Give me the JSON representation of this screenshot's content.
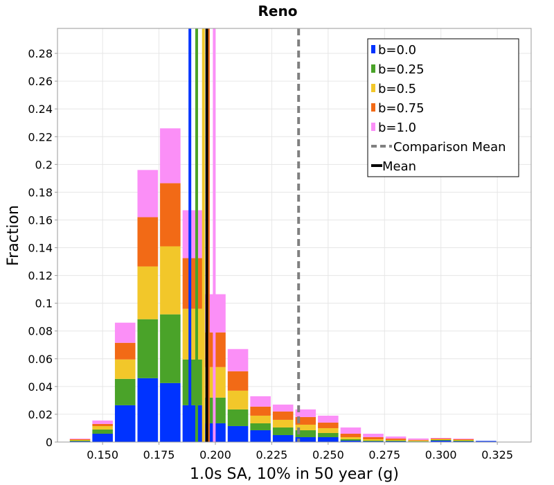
{
  "chart_data": {
    "type": "bar",
    "stacked": true,
    "title": "Reno",
    "xlabel": "1.0s SA, 10% in 50 year (g)",
    "ylabel": "Fraction",
    "xlim": [
      0.13,
      0.34
    ],
    "ylim": [
      0,
      0.298
    ],
    "x_ticks": [
      "0.150",
      "0.175",
      "0.200",
      "0.225",
      "0.250",
      "0.275",
      "0.300",
      "0.325"
    ],
    "y_ticks": [
      "0",
      "0.02",
      "0.04",
      "0.06",
      "0.08",
      "0.1",
      "0.12",
      "0.14",
      "0.16",
      "0.18",
      "0.2",
      "0.22",
      "0.24",
      "0.26",
      "0.28"
    ],
    "bin_width": 0.01,
    "x": [
      0.14,
      0.15,
      0.16,
      0.17,
      0.18,
      0.19,
      0.2,
      0.21,
      0.22,
      0.23,
      0.24,
      0.25,
      0.26,
      0.27,
      0.28,
      0.29,
      0.3,
      0.31,
      0.32
    ],
    "series": [
      {
        "name": "b=0.0",
        "color": "#0033ff",
        "values": [
          0.0005,
          0.006,
          0.0265,
          0.046,
          0.0425,
          0.0265,
          0.0135,
          0.0115,
          0.0085,
          0.005,
          0.0035,
          0.0035,
          0.001,
          0.0005,
          0.0005,
          0.0003,
          0.001,
          0.0005,
          0.0008
        ]
      },
      {
        "name": "b=0.25",
        "color": "#4aa329",
        "values": [
          0.0005,
          0.003,
          0.019,
          0.0425,
          0.0495,
          0.033,
          0.0185,
          0.012,
          0.005,
          0.0055,
          0.005,
          0.003,
          0.001,
          0.0005,
          0.0005,
          0.0003,
          0.0005,
          0.0005,
          0
        ]
      },
      {
        "name": "b=0.5",
        "color": "#f2c72a",
        "values": [
          0.0005,
          0.0025,
          0.014,
          0.038,
          0.049,
          0.0365,
          0.022,
          0.0135,
          0.0055,
          0.0055,
          0.004,
          0.0035,
          0.0015,
          0.001,
          0.0005,
          0.0005,
          0.0005,
          0.0005,
          0
        ]
      },
      {
        "name": "b=0.75",
        "color": "#f26a16",
        "values": [
          0.0005,
          0.0015,
          0.012,
          0.0355,
          0.0455,
          0.0365,
          0.025,
          0.014,
          0.0065,
          0.006,
          0.0055,
          0.004,
          0.0025,
          0.0015,
          0.001,
          0.0005,
          0.0005,
          0.0005,
          0
        ]
      },
      {
        "name": "b=1.0",
        "color": "#fb8ff7",
        "values": [
          0.0005,
          0.0025,
          0.0145,
          0.034,
          0.0395,
          0.0345,
          0.0275,
          0.016,
          0.0075,
          0.005,
          0.0055,
          0.005,
          0.0045,
          0.0025,
          0.0015,
          0.001,
          0.0005,
          0.0005,
          0
        ]
      }
    ],
    "mean_lines": [
      {
        "x": 0.1887,
        "color": "#0033ff",
        "series": "b=0.0"
      },
      {
        "x": 0.1917,
        "color": "#4aa329",
        "series": "b=0.25"
      },
      {
        "x": 0.1947,
        "color": "#f2c72a",
        "series": "b=0.5"
      },
      {
        "x": 0.1969,
        "color": "#f26a16",
        "series": "b=0.75"
      },
      {
        "x": 0.1995,
        "color": "#fb8ff7",
        "series": "b=1.0"
      },
      {
        "x": 0.1962,
        "color": "#000000",
        "series": "Mean"
      }
    ],
    "comparison_mean": 0.2369,
    "legend": {
      "position": "top-right",
      "entries": [
        {
          "label": "b=0.0",
          "kind": "box",
          "color": "#0033ff"
        },
        {
          "label": "b=0.25",
          "kind": "box",
          "color": "#4aa329"
        },
        {
          "label": "b=0.5",
          "kind": "box",
          "color": "#f2c72a"
        },
        {
          "label": "b=0.75",
          "kind": "box",
          "color": "#f26a16"
        },
        {
          "label": "b=1.0",
          "kind": "box",
          "color": "#fb8ff7"
        },
        {
          "label": "Comparison Mean",
          "kind": "dashed",
          "color": "#808080"
        },
        {
          "label": "Mean",
          "kind": "solid",
          "color": "#000000"
        }
      ]
    },
    "grid": true
  }
}
